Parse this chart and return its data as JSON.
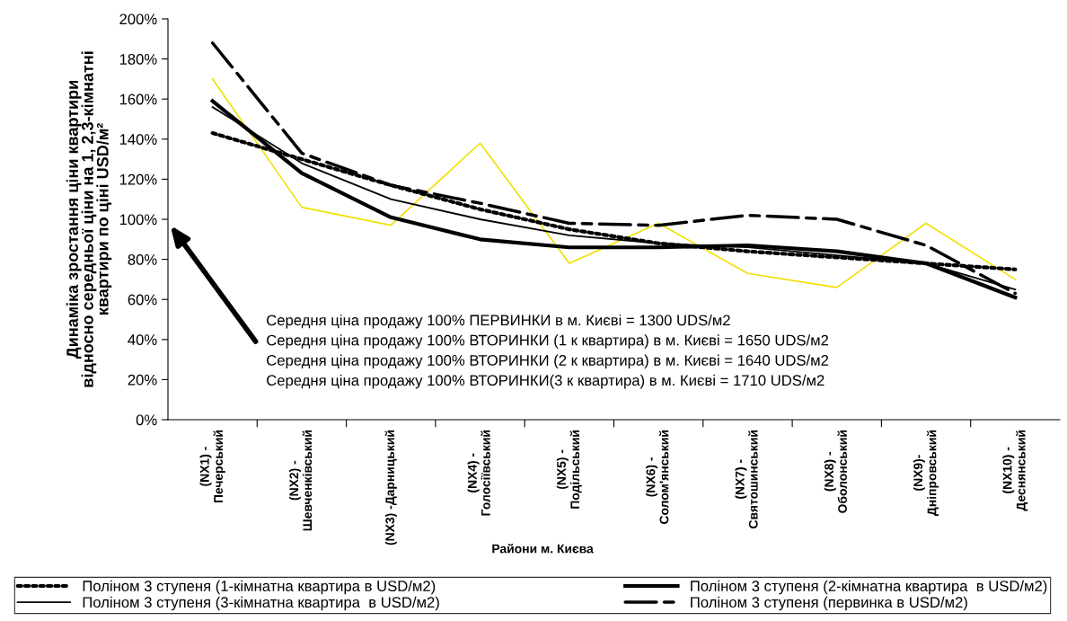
{
  "chart_data": {
    "type": "line",
    "ylabel": "Динаміка зростання ціни квартири\nвідносно середньої ціни на 1, 2,3-кімнатні\nквартири по ціні USD/м²",
    "xlabel": "Райони м. Києва",
    "categories": [
      "(NX1) -\nПечерський",
      "(NX2) -\nШевченківський",
      "(NX3) -Дарницький",
      "(NX4) -\nГолосіївський",
      "(NX5) -\nПодільський",
      "(NX6) -\nСолом'янський",
      "(NX7) -\nСвятошинський",
      "(NX8) -\nОболонський",
      "(NX9)-\nДніпровський",
      "(NX10) -\nДеснянський"
    ],
    "series": [
      {
        "color": "#f0e000",
        "line_style": "solid",
        "values": [
          170,
          106,
          97,
          138,
          78,
          98,
          73,
          66,
          98,
          70
        ]
      },
      {
        "name": "Поліном 3 ступеня (1-кімнатна квартира в USD/м2)",
        "color": "#000000",
        "line_style": "dotted",
        "values": [
          143,
          130,
          117,
          105,
          95,
          88,
          84,
          81,
          78,
          75
        ]
      },
      {
        "name": "Поліном 3 ступеня (2-кімнатна квартира  в USD/м2)",
        "color": "#000000",
        "line_style": "solid",
        "values": [
          159,
          123,
          101,
          90,
          86,
          86,
          87,
          84,
          78,
          61
        ]
      },
      {
        "name": "Поліном 3 ступеня (3-кімнатна квартира  в USD/м2)",
        "color": "#000000",
        "line_style": "solid",
        "values": [
          156,
          128,
          110,
          100,
          92,
          88,
          86,
          82,
          78,
          65
        ]
      },
      {
        "name": "Поліном 3 ступеня (первинка в USD/м2)",
        "color": "#000000",
        "line_style": "dashed",
        "values": [
          188,
          133,
          117,
          108,
          98,
          97,
          102,
          100,
          87,
          63
        ]
      }
    ],
    "ylim": [
      0,
      200
    ],
    "yticks": [
      {
        "value": 0,
        "label": "0%"
      },
      {
        "value": 20,
        "label": "20%"
      },
      {
        "value": 40,
        "label": "40%"
      },
      {
        "value": 60,
        "label": "60%"
      },
      {
        "value": 80,
        "label": "80%"
      },
      {
        "value": 100,
        "label": "100%"
      },
      {
        "value": 120,
        "label": "120%"
      },
      {
        "value": 140,
        "label": "140%"
      },
      {
        "value": 160,
        "label": "160%"
      },
      {
        "value": 180,
        "label": "180%"
      },
      {
        "value": 200,
        "label": "200%"
      }
    ],
    "annotations": [
      "Середня ціна продажу 100% ПЕРВИНКИ в м. Києві = 1300 UDS/м2",
      "Середня ціна продажу 100% ВТОРИНКИ (1 к квартира) в м. Києві = 1650 UDS/м2",
      "Середня ціна продажу 100% ВТОРИНКИ (2 к квартира) в м. Києві = 1640 UDS/м2",
      "Середня ціна продажу 100% ВТОРИНКИ(3 к квартира) в м. Києві = 1710 UDS/м2"
    ],
    "grid": false,
    "legend": "bottom",
    "marker": "none"
  }
}
